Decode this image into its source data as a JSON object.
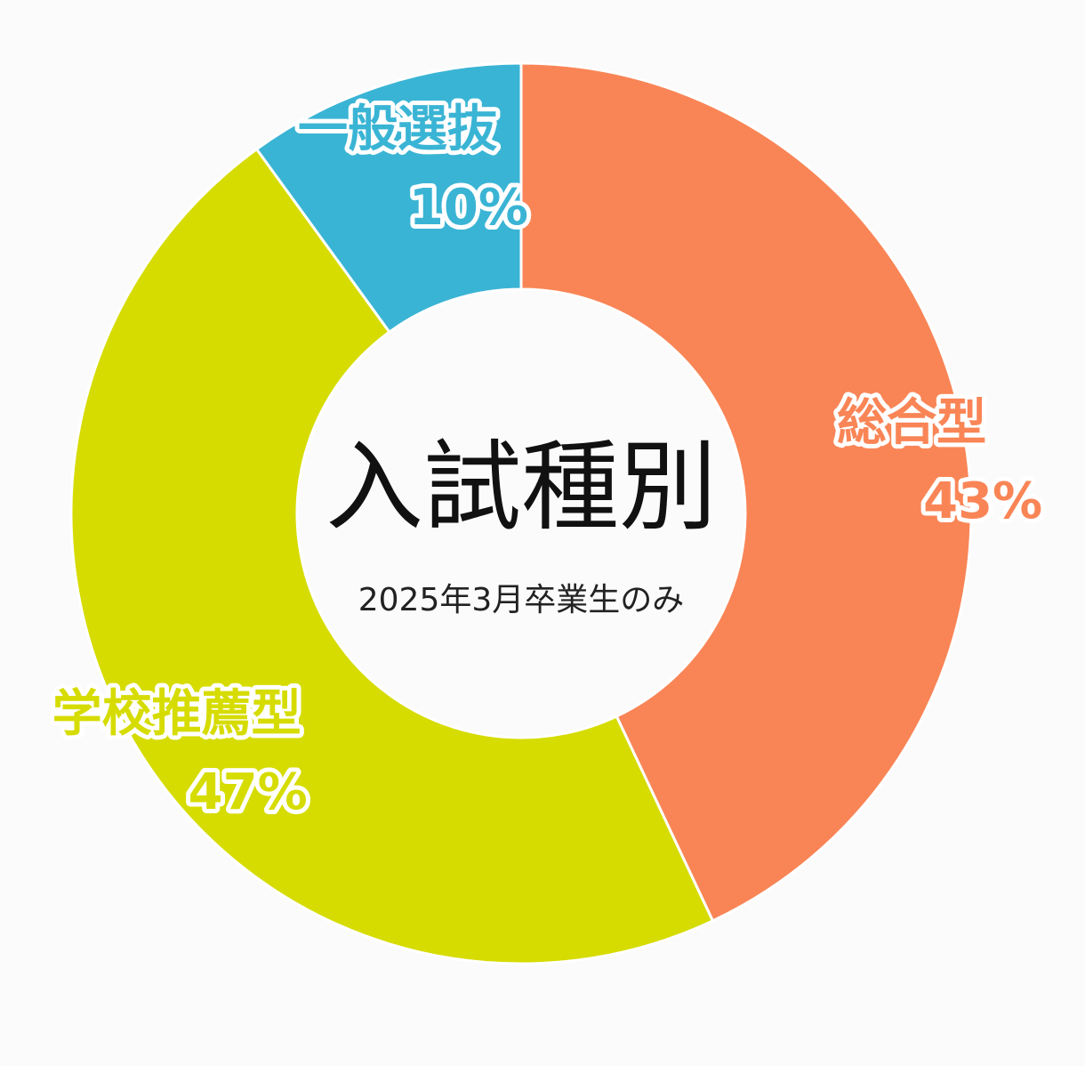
{
  "chart_data": {
    "type": "pie",
    "title": "入試種別",
    "subtitle": "2025年3月卒業生のみ",
    "categories": [
      "総合型",
      "学校推薦型",
      "一般選抜"
    ],
    "values": [
      43,
      47,
      10
    ],
    "value_labels": [
      "43%",
      "47%",
      "10%"
    ],
    "colors": [
      "#f98556",
      "#d6dc00",
      "#3ab4d4"
    ],
    "donut": true
  }
}
